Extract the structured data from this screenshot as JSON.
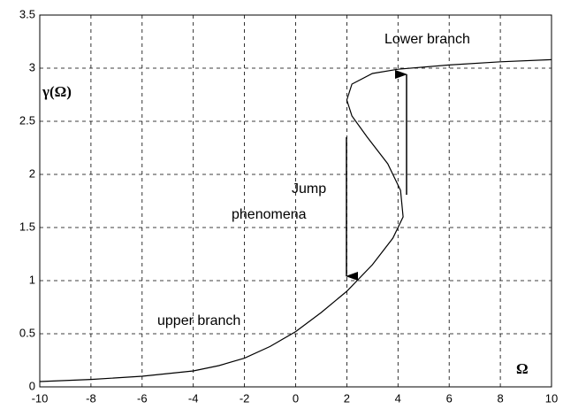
{
  "chart_data": {
    "type": "line",
    "x": [
      -10,
      -8,
      -6,
      -4,
      -3,
      -2,
      -1,
      0,
      1,
      2,
      3,
      3.8,
      4.2,
      4.1,
      3.6,
      2.8,
      2.2,
      2.0,
      2.2,
      3,
      4,
      6,
      8,
      10
    ],
    "series": [
      {
        "color": "#000000",
        "values": [
          0.05,
          0.07,
          0.1,
          0.15,
          0.2,
          0.27,
          0.38,
          0.52,
          0.7,
          0.9,
          1.15,
          1.4,
          1.6,
          1.85,
          2.1,
          2.35,
          2.55,
          2.7,
          2.85,
          2.95,
          2.99,
          3.03,
          3.06,
          3.08
        ]
      }
    ],
    "xlabel": "Ω",
    "ylabel": "γ(Ω)",
    "annotations": [
      "Lower branch",
      "Jump",
      "phenomena",
      "upper branch"
    ],
    "xlim": [
      -10,
      10
    ],
    "xticks": [
      -10,
      -8,
      -6,
      -4,
      -2,
      0,
      2,
      4,
      6,
      8,
      10
    ],
    "ylim": [
      0,
      3.5
    ],
    "yticks": [
      0,
      0.5,
      1,
      1.5,
      2,
      2.5,
      3,
      3.5
    ],
    "grid": true
  }
}
